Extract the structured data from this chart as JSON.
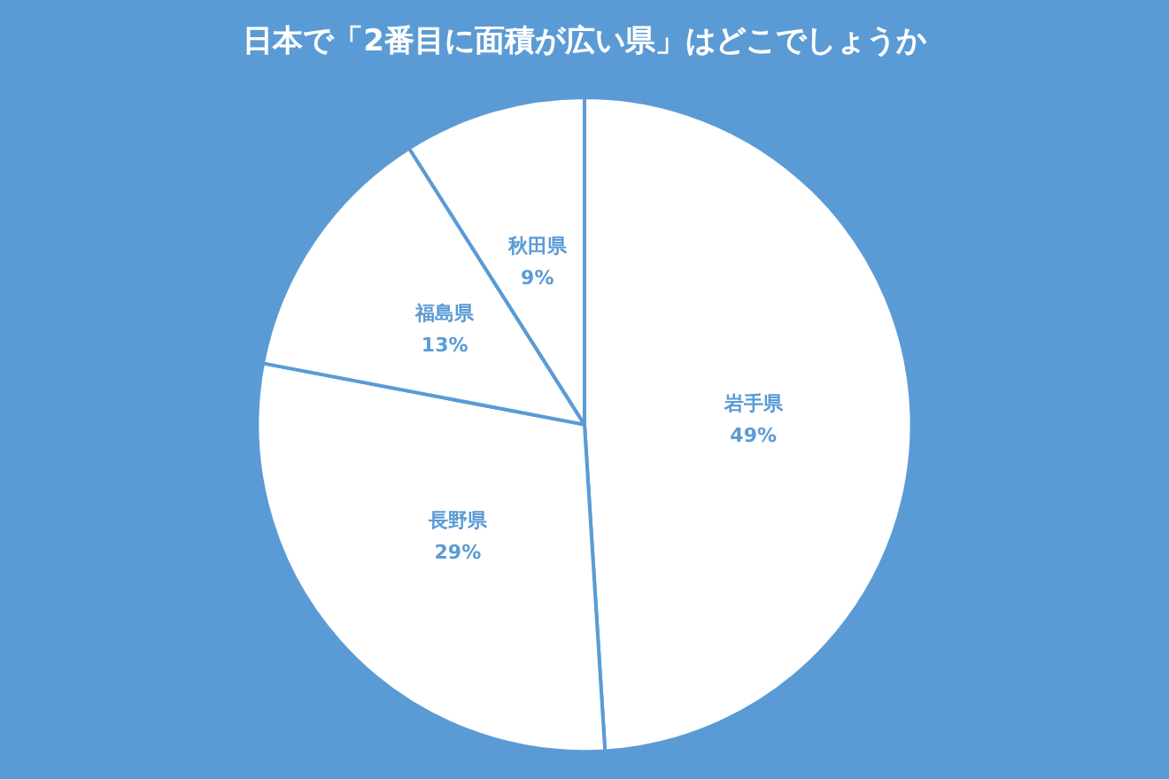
{
  "chart_data": {
    "type": "pie",
    "title": "日本で「2番目に面積が広い県」はどこでしょうか",
    "categories": [
      "岩手県",
      "長野県",
      "福島県",
      "秋田県"
    ],
    "values": [
      49,
      29,
      13,
      9
    ],
    "value_labels": [
      "49%",
      "29%",
      "13%",
      "9%"
    ],
    "colors": [
      "#ffffff",
      "#ffffff",
      "#ffffff",
      "#ffffff"
    ],
    "legend": false
  }
}
